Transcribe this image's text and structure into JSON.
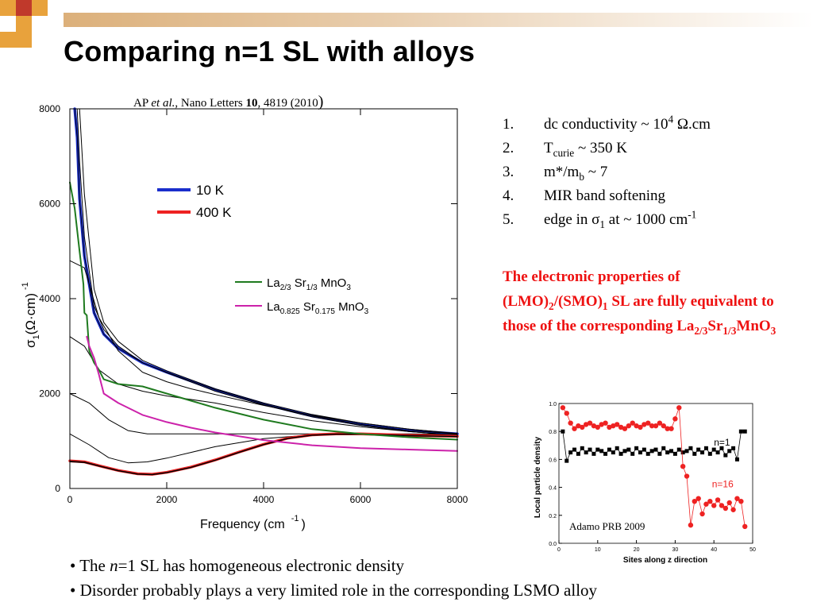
{
  "slide_title": "Comparing n=1 SL with alloys",
  "citation": {
    "authors": "AP",
    "etal": "et al.",
    "journal": ", Nano Letters ",
    "volume": "10",
    "pages": ", 4819 (2010",
    "close": ")"
  },
  "chart_data": [
    {
      "type": "line",
      "xlabel": "Frequency (cm",
      "xlabel_exp": "-1",
      "xlabel_close": ")",
      "ylabel": "σ",
      "ylabel_sub": "1",
      "ylabel_rest": "(Ω·cm)",
      "ylabel_exp": "-1",
      "xlim": [
        0,
        8000
      ],
      "ylim": [
        0,
        8000
      ],
      "x_ticks": [
        "0",
        "2000",
        "4000",
        "6000",
        "8000"
      ],
      "y_ticks": [
        "0",
        "2000",
        "4000",
        "6000",
        "8000"
      ],
      "legend_top": [
        {
          "label": "10 K",
          "color": "#1a2ecc"
        },
        {
          "label": "400 K",
          "color": "#ee2222"
        }
      ],
      "legend_alloys": [
        {
          "label_parts": [
            "La",
            "2/3",
            " Sr",
            "1/3",
            " MnO",
            "3"
          ],
          "color": "#1f7a1f"
        },
        {
          "label_parts": [
            "La",
            "0.825",
            " Sr",
            "0.175",
            " MnO",
            "3"
          ],
          "color": "#cc22aa"
        }
      ],
      "series": [
        {
          "color": "#1a2ecc",
          "width": 3.5,
          "x": [
            100,
            150,
            200,
            300,
            500,
            700,
            1000,
            1500,
            2000,
            3000,
            4000,
            5000,
            6000,
            7000,
            8000
          ],
          "y": [
            8000,
            7400,
            6100,
            4900,
            3700,
            3250,
            2950,
            2650,
            2450,
            2080,
            1780,
            1530,
            1350,
            1220,
            1150
          ]
        },
        {
          "color": "#000000",
          "width": 1,
          "x": [
            150,
            200,
            300,
            500,
            700,
            1000,
            1500,
            2000,
            3000,
            4000,
            5000,
            6000,
            7000,
            8000
          ],
          "y": [
            8000,
            6900,
            5300,
            3850,
            3350,
            3000,
            2650,
            2440,
            2050,
            1760,
            1510,
            1330,
            1200,
            1120
          ]
        },
        {
          "color": "#000000",
          "width": 1,
          "x": [
            200,
            300,
            500,
            700,
            1000,
            1500,
            2000,
            3000,
            4000,
            5000,
            6000,
            7000,
            8000
          ],
          "y": [
            8000,
            6200,
            4200,
            3500,
            3100,
            2700,
            2480,
            2100,
            1800,
            1560,
            1380,
            1250,
            1160
          ]
        },
        {
          "color": "#000000",
          "width": 1,
          "x": [
            0,
            300,
            600,
            1000,
            1500,
            2000,
            2500,
            3000,
            4000,
            5000,
            6000,
            7000,
            8000
          ],
          "y": [
            4800,
            4650,
            3600,
            2900,
            2450,
            2250,
            2100,
            1980,
            1750,
            1540,
            1380,
            1250,
            1150
          ]
        },
        {
          "color": "#000000",
          "width": 1,
          "x": [
            0,
            300,
            600,
            1000,
            1500,
            2000,
            3000,
            4000,
            5000,
            6000,
            7000,
            8000
          ],
          "y": [
            3200,
            3000,
            2500,
            2200,
            2050,
            1950,
            1800,
            1600,
            1430,
            1300,
            1200,
            1120
          ]
        },
        {
          "color": "#000000",
          "width": 1,
          "x": [
            0,
            400,
            800,
            1200,
            1600,
            2000,
            3000,
            4000,
            5000,
            6000,
            7000,
            8000
          ],
          "y": [
            2000,
            1800,
            1450,
            1220,
            1150,
            1150,
            1150,
            1150,
            1150,
            1150,
            1140,
            1130
          ]
        },
        {
          "color": "#000000",
          "width": 1,
          "x": [
            0,
            400,
            800,
            1200,
            1600,
            2000,
            2500,
            3000,
            4000,
            5000,
            6000,
            7000,
            8000
          ],
          "y": [
            1150,
            920,
            650,
            540,
            560,
            640,
            760,
            880,
            1050,
            1130,
            1150,
            1150,
            1140
          ]
        },
        {
          "color": "#ee2222",
          "width": 3.5,
          "x": [
            0,
            300,
            600,
            1000,
            1400,
            1700,
            2000,
            2500,
            3000,
            3500,
            4000,
            4500,
            5000,
            5500,
            6000,
            7000,
            8000
          ],
          "y": [
            580,
            560,
            480,
            380,
            310,
            300,
            340,
            450,
            600,
            770,
            930,
            1060,
            1130,
            1150,
            1150,
            1120,
            1100
          ]
        },
        {
          "color": "#000000",
          "width": 1,
          "x": [
            0,
            300,
            600,
            1000,
            1400,
            1700,
            2000,
            2500,
            3000,
            3500,
            4000,
            4500,
            5000,
            5500,
            6000,
            7000,
            8000
          ],
          "y": [
            560,
            545,
            470,
            370,
            300,
            290,
            330,
            440,
            590,
            760,
            920,
            1050,
            1120,
            1140,
            1140,
            1110,
            1090
          ]
        },
        {
          "color": "#1f7a1f",
          "width": 2,
          "x": [
            0,
            100,
            200,
            280,
            300,
            350,
            400,
            500,
            600,
            700,
            1000,
            1500,
            2000,
            2500,
            3000,
            4000,
            5000,
            6000,
            7000,
            8000
          ],
          "y": [
            6450,
            5900,
            5000,
            4300,
            3700,
            3650,
            2900,
            2650,
            2500,
            2300,
            2200,
            2150,
            2000,
            1850,
            1700,
            1450,
            1250,
            1150,
            1080,
            1030
          ]
        },
        {
          "color": "#cc22aa",
          "width": 2,
          "x": [
            350,
            400,
            500,
            600,
            700,
            1000,
            1500,
            2000,
            2500,
            3000,
            4000,
            5000,
            6000,
            7000,
            8000
          ],
          "y": [
            3200,
            3000,
            2750,
            2400,
            2000,
            1800,
            1550,
            1400,
            1280,
            1180,
            1020,
            910,
            850,
            820,
            790
          ]
        }
      ]
    },
    {
      "type": "scatter",
      "xlabel": "Sites along z direction",
      "ylabel": "Local particle density",
      "xlim": [
        0,
        50
      ],
      "ylim": [
        0,
        1.0
      ],
      "x_ticks": [
        "0",
        "10",
        "20",
        "30",
        "40",
        "50"
      ],
      "y_ticks": [
        "0.0",
        "0.2",
        "0.4",
        "0.6",
        "0.8",
        "1.0"
      ],
      "series": [
        {
          "name": "n=1",
          "color": "#000000",
          "marker": "square",
          "x": [
            1,
            2,
            3,
            4,
            5,
            6,
            7,
            8,
            9,
            10,
            11,
            12,
            13,
            14,
            15,
            16,
            17,
            18,
            19,
            20,
            21,
            22,
            23,
            24,
            25,
            26,
            27,
            28,
            29,
            30,
            31,
            32,
            33,
            34,
            35,
            36,
            37,
            38,
            39,
            40,
            41,
            42,
            43,
            44,
            45,
            46,
            47,
            48
          ],
          "y": [
            0.8,
            0.59,
            0.65,
            0.67,
            0.64,
            0.68,
            0.65,
            0.67,
            0.64,
            0.67,
            0.66,
            0.64,
            0.67,
            0.65,
            0.68,
            0.64,
            0.66,
            0.67,
            0.64,
            0.68,
            0.65,
            0.67,
            0.64,
            0.66,
            0.67,
            0.64,
            0.68,
            0.65,
            0.66,
            0.64,
            0.67,
            0.65,
            0.66,
            0.68,
            0.64,
            0.67,
            0.65,
            0.68,
            0.64,
            0.67,
            0.65,
            0.68,
            0.63,
            0.66,
            0.68,
            0.6,
            0.8,
            0.8
          ]
        },
        {
          "name": "n=16",
          "color": "#ee2222",
          "marker": "circle",
          "x": [
            1,
            2,
            3,
            4,
            5,
            6,
            7,
            8,
            9,
            10,
            11,
            12,
            13,
            14,
            15,
            16,
            17,
            18,
            19,
            20,
            21,
            22,
            23,
            24,
            25,
            26,
            27,
            28,
            29,
            30,
            31,
            32,
            33,
            34,
            35,
            36,
            37,
            38,
            39,
            40,
            41,
            42,
            43,
            44,
            45,
            46,
            47,
            48
          ],
          "y": [
            0.97,
            0.93,
            0.86,
            0.82,
            0.84,
            0.83,
            0.85,
            0.86,
            0.84,
            0.83,
            0.85,
            0.86,
            0.83,
            0.84,
            0.85,
            0.83,
            0.82,
            0.84,
            0.86,
            0.84,
            0.83,
            0.85,
            0.86,
            0.84,
            0.84,
            0.86,
            0.84,
            0.82,
            0.82,
            0.89,
            0.97,
            0.55,
            0.48,
            0.13,
            0.3,
            0.32,
            0.21,
            0.28,
            0.3,
            0.27,
            0.31,
            0.27,
            0.25,
            0.29,
            0.24,
            0.32,
            0.3,
            0.12
          ]
        }
      ],
      "annotations": [
        {
          "text": "n=1",
          "x": 40,
          "y": 0.7,
          "color": "#000000"
        },
        {
          "text": "n=16",
          "x": 39.5,
          "y": 0.4,
          "color": "#ee2222"
        }
      ]
    }
  ],
  "points": [
    {
      "num": "1.",
      "parts": [
        {
          "t": "dc conductivity ~ 10"
        },
        {
          "t": "4",
          "sup": true
        },
        {
          "t": " Ω.cm"
        }
      ]
    },
    {
      "num": "2.",
      "parts": [
        {
          "t": "T"
        },
        {
          "t": "curie",
          "sub": true
        },
        {
          "t": " ~ 350 K"
        }
      ]
    },
    {
      "num": "3.",
      "parts": [
        {
          "t": "m*/m"
        },
        {
          "t": "b",
          "sub": true
        },
        {
          "t": " ~ 7"
        }
      ]
    },
    {
      "num": "4.",
      "parts": [
        {
          "t": "MIR band softening"
        }
      ]
    },
    {
      "num": "5.",
      "parts": [
        {
          "t": "edge in σ"
        },
        {
          "t": "1",
          "sub": true
        },
        {
          "t": " at ~ 1000 cm"
        },
        {
          "t": "-1",
          "sup": true
        }
      ]
    }
  ],
  "conclusion": [
    {
      "t": "The electronic properties of (LMO)"
    },
    {
      "t": "2",
      "sub": true
    },
    {
      "t": "/(SMO)"
    },
    {
      "t": "1",
      "sub": true
    },
    {
      "t": " SL are fully equivalent to those of the corresponding La"
    },
    {
      "t": "2/3",
      "sub": true
    },
    {
      "t": "Sr"
    },
    {
      "t": "1/3",
      "sub": true
    },
    {
      "t": "MnO"
    },
    {
      "t": "3",
      "sub": true
    }
  ],
  "inset_ref": "Adamo PRB 2009",
  "bullets": [
    [
      {
        "t": "• The "
      },
      {
        "t": "n",
        "i": true
      },
      {
        "t": "=1 SL has homogeneous electronic density"
      }
    ],
    [
      {
        "t": "• Disorder probably plays a very limited role in the corresponding LSMO alloy"
      }
    ]
  ],
  "colors": {
    "title_bar": "#dcb07a",
    "deco_orange": "#e8a23c",
    "deco_red": "#c0392b",
    "conclusion": "#ee1111"
  }
}
